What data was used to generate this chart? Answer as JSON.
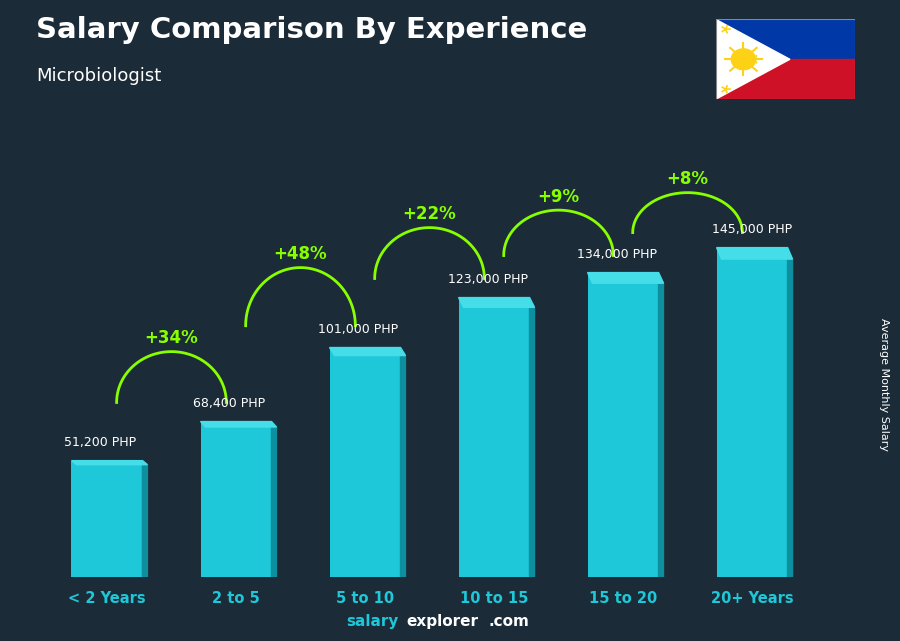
{
  "title": "Salary Comparison By Experience",
  "subtitle": "Microbiologist",
  "categories": [
    "< 2 Years",
    "2 to 5",
    "5 to 10",
    "10 to 15",
    "15 to 20",
    "20+ Years"
  ],
  "values": [
    51200,
    68400,
    101000,
    123000,
    134000,
    145000
  ],
  "salary_labels": [
    "51,200 PHP",
    "68,400 PHP",
    "101,000 PHP",
    "123,000 PHP",
    "134,000 PHP",
    "145,000 PHP"
  ],
  "pct_labels": [
    "+34%",
    "+48%",
    "+22%",
    "+9%",
    "+8%"
  ],
  "bar_color_main": "#1ec8d8",
  "bar_color_light": "#45dde8",
  "bar_color_dark": "#0e8fa0",
  "bar_color_side": "#0a6e7c",
  "bg_color": "#1c2b38",
  "title_color": "#ffffff",
  "subtitle_color": "#ffffff",
  "salary_label_color": "#ffffff",
  "pct_color": "#88ff00",
  "xlabel_color": "#1ec8d8",
  "ylabel_text": "Average Monthly Salary",
  "footer_salary_color": "#1ec8d8",
  "footer_explorer_color": "#ffffff",
  "footer_com_color": "#ffffff",
  "ylim_max": 175000,
  "arrow_configs": [
    {
      "from": 0,
      "to": 1,
      "pct": "+34%",
      "arc_raise": 28000
    },
    {
      "from": 1,
      "to": 2,
      "pct": "+48%",
      "arc_raise": 32000
    },
    {
      "from": 2,
      "to": 3,
      "pct": "+22%",
      "arc_raise": 28000
    },
    {
      "from": 3,
      "to": 4,
      "pct": "+9%",
      "arc_raise": 25000
    },
    {
      "from": 4,
      "to": 5,
      "pct": "+8%",
      "arc_raise": 22000
    }
  ]
}
